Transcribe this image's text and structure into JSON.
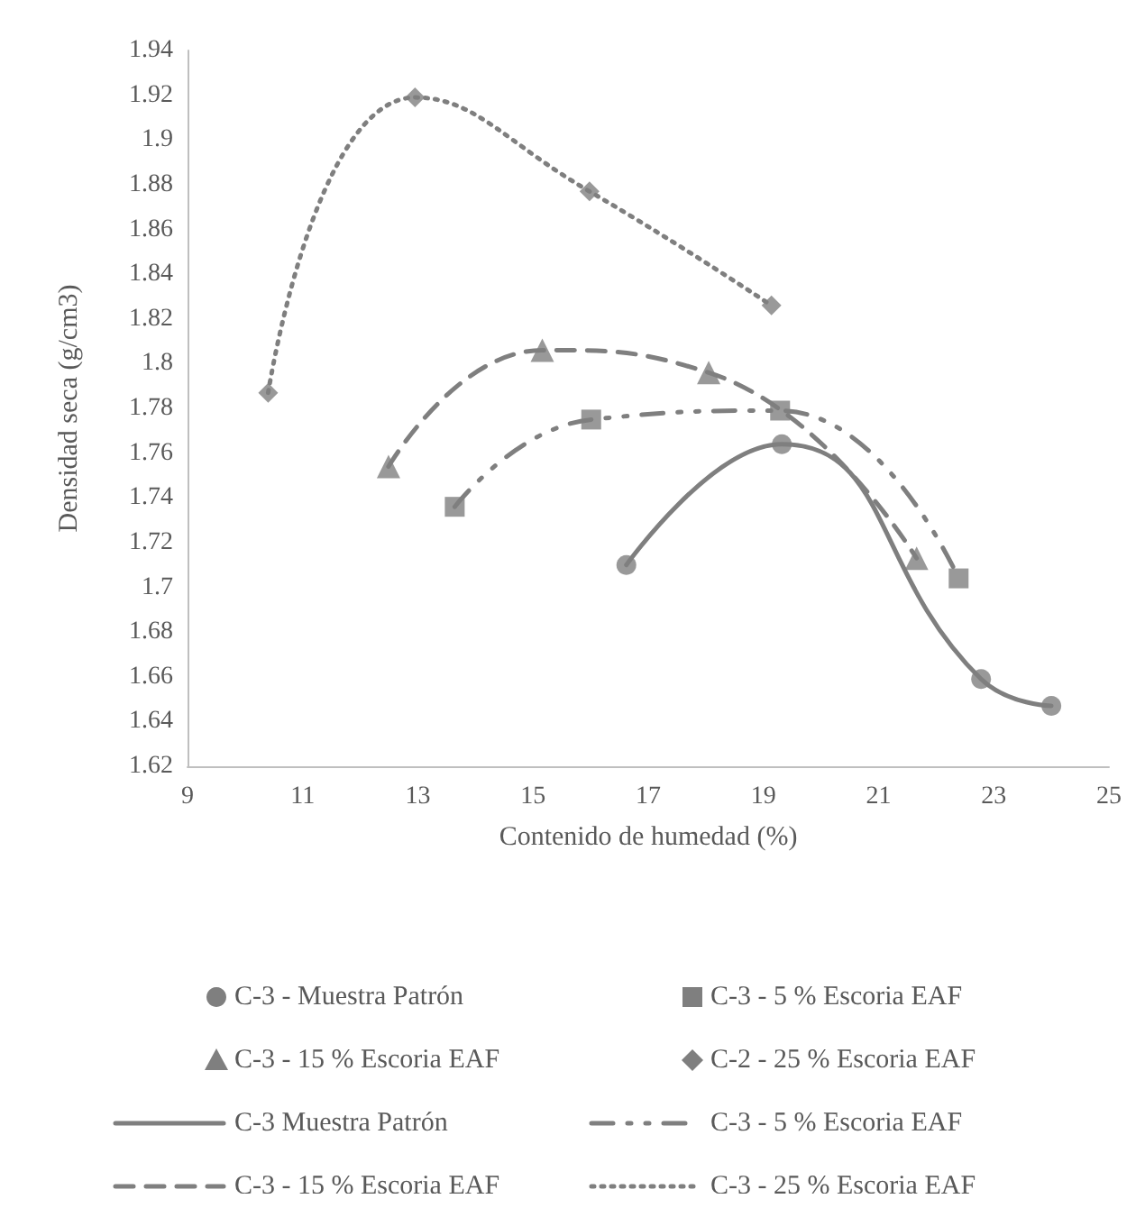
{
  "chart_data": {
    "type": "scatter",
    "xlabel": "Contenido de humedad (%)",
    "ylabel": "Densidad seca (g/cm3)",
    "xlim": [
      9,
      25
    ],
    "xticks": [
      9,
      11,
      13,
      15,
      17,
      19,
      21,
      23,
      25
    ],
    "ylim": [
      1.62,
      1.94
    ],
    "yticks": [
      1.62,
      1.64,
      1.66,
      1.68,
      1.7,
      1.72,
      1.74,
      1.76,
      1.78,
      1.8,
      1.82,
      1.84,
      1.86,
      1.88,
      1.9,
      1.92,
      1.94
    ],
    "grid": false,
    "legend": "bottom",
    "series": [
      {
        "name": "C-3 - Muestra Patrón",
        "color": "#7f7f7f",
        "marker": "circle",
        "x": [
          16.62,
          19.32,
          22.78,
          24.0
        ],
        "values": [
          1.71,
          1.764,
          1.659,
          1.647
        ]
      },
      {
        "name": "C-3 - 5 % Escoria EAF",
        "color": "#7f7f7f",
        "marker": "square",
        "x": [
          13.64,
          16.01,
          19.29,
          22.39
        ],
        "values": [
          1.736,
          1.775,
          1.779,
          1.704
        ]
      },
      {
        "name": "C-3 - 15 % Escoria EAF",
        "color": "#7f7f7f",
        "marker": "triangle",
        "x": [
          12.49,
          15.16,
          18.05,
          21.66
        ],
        "values": [
          1.754,
          1.806,
          1.796,
          1.713
        ]
      },
      {
        "name": "C-2 - 25 % Escoria EAF",
        "color": "#7f7f7f",
        "marker": "diamond",
        "x": [
          10.4,
          12.95,
          15.98,
          19.14
        ],
        "values": [
          1.787,
          1.919,
          1.877,
          1.826
        ]
      },
      {
        "type": "line",
        "name": "C-3 Muestra Patrón",
        "color": "#7f7f7f",
        "marker": "none",
        "line_style": "solid",
        "x": [
          16.62,
          19.32,
          22.78,
          24.0
        ],
        "values": [
          1.71,
          1.764,
          1.659,
          1.647
        ]
      },
      {
        "type": "line",
        "name": "C-3 - 5 % Escoria EAF",
        "color": "#7f7f7f",
        "marker": "none",
        "line_style": "dashdot",
        "x": [
          13.64,
          16.01,
          19.29,
          22.39
        ],
        "values": [
          1.736,
          1.775,
          1.779,
          1.704
        ]
      },
      {
        "type": "line",
        "name": "C-3 - 15 % Escoria EAF",
        "color": "#7f7f7f",
        "marker": "none",
        "line_style": "dashed",
        "x": [
          12.49,
          15.16,
          18.05,
          21.66
        ],
        "values": [
          1.754,
          1.806,
          1.796,
          1.713
        ]
      },
      {
        "type": "line",
        "name": "C-3 - 25 % Escoria EAF",
        "color": "#7f7f7f",
        "marker": "none",
        "line_style": "dotted",
        "x": [
          10.4,
          12.95,
          15.98,
          19.14
        ],
        "values": [
          1.787,
          1.919,
          1.877,
          1.826
        ]
      }
    ]
  }
}
